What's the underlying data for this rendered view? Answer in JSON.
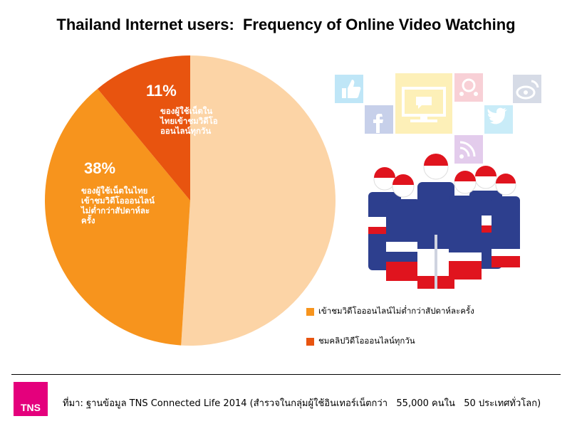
{
  "chart_data": {
    "type": "pie",
    "title": "Thailand Internet users:  Frequency of Online Video Watching",
    "slices": [
      {
        "name": "",
        "value": 51,
        "label_pct": "",
        "label_text": [],
        "color": "#fcd4a6"
      },
      {
        "name": "เข้าชมวิดีโอออนไลน์ไม่ต่ำกว่าสัปดาห์ละครั้ง",
        "value": 38,
        "label_pct": "38%",
        "label_text": [
          "ของผู้ใช้เน็ตในไทย",
          "เข้าชมวิดีโอออนไลน์",
          "ไม่ต่ำกว่าสัปดาห์ละ",
          "ครั้ง"
        ],
        "color": "#f7941d"
      },
      {
        "name": "ชมคลิปวิดีโอออนไลน์ทุกวัน",
        "value": 11,
        "label_pct": "11%",
        "label_text": [
          "ของผู้ใช้เน็ตใน",
          "ไทยเข้าชมวิดีโอ",
          "ออนไลน์ทุกวัน"
        ],
        "color": "#e8540f"
      }
    ],
    "legend": {
      "placement": "bottom-right",
      "items": [
        {
          "label": "เข้าชมวิดีโอออนไลน์ไม่ต่ำกว่าสัปดาห์ละครั้ง",
          "color": "#f7941d"
        },
        {
          "label": "ชมคลิปวิดีโอออนไลน์ทุกวัน",
          "color": "#e8540f"
        }
      ]
    }
  },
  "decoration": {
    "icons": [
      {
        "name": "thumbs-up-icon",
        "color": "#bfe6f7"
      },
      {
        "name": "facebook-icon",
        "color": "#c7d0ea"
      },
      {
        "name": "video-screen-icon",
        "color": "#fdf0b8"
      },
      {
        "name": "network-icon",
        "color": "#f8d0d6"
      },
      {
        "name": "weibo-icon",
        "color": "#d6dbe6"
      },
      {
        "name": "twitter-icon",
        "color": "#c9ecf8"
      },
      {
        "name": "rss-icon",
        "color": "#e3ccec"
      }
    ],
    "flag_colors": {
      "red": "#e0141e",
      "white": "#ffffff",
      "blue": "#2d3f8e"
    }
  },
  "footer": {
    "logo_text": "TNS",
    "logo_color": "#e4007c",
    "source": "ที่มา: ฐานข้อมูล TNS Connected Life 2014 (สำรวจในกลุ่มผู้ใช้อินเทอร์เน็ตกว่า   55,000 คนใน   50 ประเทศทั่วโลก)"
  }
}
